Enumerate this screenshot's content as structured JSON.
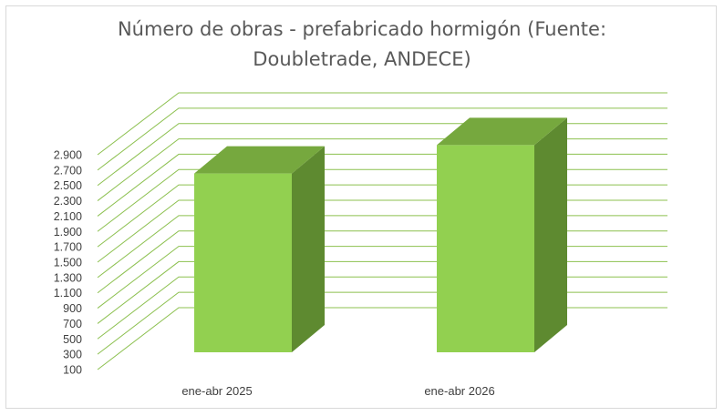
{
  "chart_data": {
    "type": "bar",
    "title_lines": [
      "Número de obras - prefabricado hormigón (Fuente:",
      "Doubletrade, ANDECE)"
    ],
    "categories": [
      "ene-abr 2025",
      "ene-abr 2026"
    ],
    "values": [
      2630,
      3000
    ],
    "ylim": [
      100,
      2900
    ],
    "y_ticks": [
      "2.900",
      "2.700",
      "2.500",
      "2.300",
      "2.100",
      "1.900",
      "1.700",
      "1.500",
      "1.300",
      "1.100",
      "900",
      "700",
      "500",
      "300",
      "100"
    ],
    "y_tick_values": [
      2900,
      2700,
      2500,
      2300,
      2100,
      1900,
      1700,
      1500,
      1300,
      1100,
      900,
      700,
      500,
      300,
      100
    ],
    "grid": true,
    "style": "3d-column",
    "colors": {
      "front": "#92d050",
      "top": "#76a83e",
      "side": "#5e8a30",
      "grid": "#8cc04f",
      "text": "#404040",
      "title": "#595959"
    }
  }
}
